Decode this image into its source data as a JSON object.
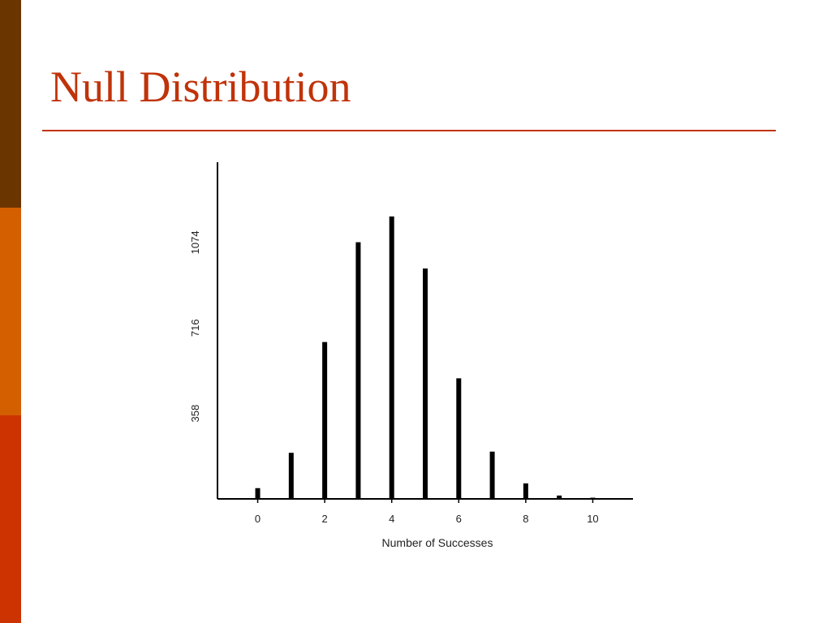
{
  "slide": {
    "title": "Null Distribution",
    "colors": {
      "title": "#c0330a",
      "rule": "#c0330a",
      "bar_top": "#6b3500",
      "bar_mid": "#d45f00",
      "bar_bot": "#cc3300"
    }
  },
  "chart_data": {
    "type": "bar",
    "x": [
      0,
      1,
      2,
      3,
      4,
      5,
      6,
      7,
      8,
      9,
      10
    ],
    "values": [
      45,
      193,
      657,
      1075,
      1183,
      965,
      505,
      198,
      65,
      14,
      5
    ],
    "xlabel": "Number of Successes",
    "ylabel": "",
    "xticks": [
      0,
      2,
      4,
      6,
      8,
      10
    ],
    "yticks": [
      358,
      716,
      1074
    ],
    "xlim": [
      -1.2,
      11.2
    ],
    "ylim": [
      0,
      1410
    ],
    "grid": false,
    "colors": {
      "bar": "#000000",
      "axis": "#000000"
    }
  }
}
